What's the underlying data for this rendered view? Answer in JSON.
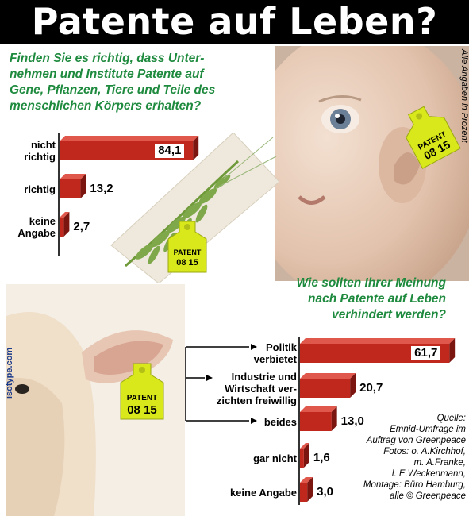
{
  "title": "Patente auf Leben?",
  "side_note": "Alle Angaben in Prozent",
  "credit_vertical": "isotype.com",
  "tag": {
    "line1": "PATENT",
    "line2": "08 15"
  },
  "source_lines": [
    "Quelle:",
    "Emnid-Umfrage im",
    "Auftrag von Greenpeace",
    "Fotos: o. A.Kirchhof,",
    "m. A.Franke,",
    "l. E.Weckenmann,",
    "Montage: Büro Hamburg,",
    "alle © Greenpeace"
  ],
  "colors": {
    "title_bg": "#000000",
    "title_text": "#ffffff",
    "question_text": "#1e8a3e",
    "bar_red": "#c0281e",
    "bar_dark": "#7a1510",
    "tag_yellow": "#d8e81a"
  },
  "chart_data": [
    {
      "type": "bar",
      "orientation": "horizontal",
      "title": "Finden Sie es richtig, dass Unternehmen und Institute Patente auf Gene, Pflanzen, Tiere und Teile des menschlichen Körpers erhalten?",
      "title_lines": [
        "Finden Sie es richtig, dass Unter-",
        "nehmen und Institute Patente auf",
        "Gene, Pflanzen, Tiere und Teile des",
        "menschlichen Körpers erhalten?"
      ],
      "categories": [
        "nicht richtig",
        "richtig",
        "keine Angabe"
      ],
      "category_lines": [
        [
          "nicht",
          "richtig"
        ],
        [
          "richtig"
        ],
        [
          "keine",
          "Angabe"
        ]
      ],
      "values": [
        84.1,
        13.2,
        2.7
      ],
      "value_labels": [
        "84,1",
        "13,2",
        "2,7"
      ],
      "unit": "Prozent"
    },
    {
      "type": "bar",
      "orientation": "horizontal",
      "title": "Wie sollten Ihrer Meinung nach Patente auf Leben verhindert werden?",
      "title_lines": [
        "Wie sollten Ihrer Meinung",
        "nach Patente auf Leben",
        "verhindert werden?"
      ],
      "categories": [
        "Politik verbietet",
        "Industrie und Wirtschaft verzichten freiwillig",
        "beides",
        "gar nicht",
        "keine Angabe"
      ],
      "category_lines": [
        [
          "Politik",
          "verbietet"
        ],
        [
          "Industrie und",
          "Wirtschaft ver-",
          "zichten freiwillig"
        ],
        [
          "beides"
        ],
        [
          "gar nicht"
        ],
        [
          "keine Angabe"
        ]
      ],
      "values": [
        61.7,
        20.7,
        13.0,
        1.6,
        3.0
      ],
      "value_labels": [
        "61,7",
        "20,7",
        "13,0",
        "1,6",
        "3,0"
      ],
      "unit": "Prozent"
    }
  ]
}
